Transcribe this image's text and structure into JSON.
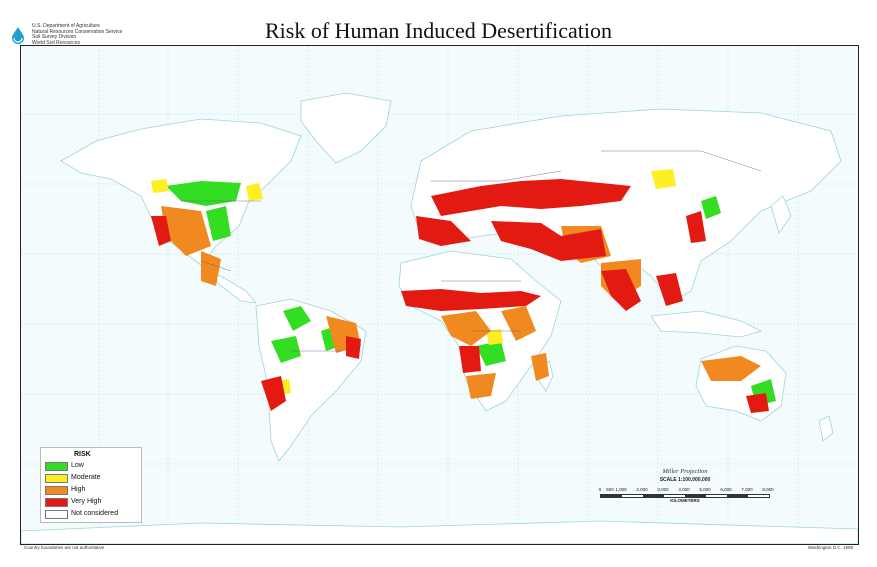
{
  "agency": {
    "lines": [
      "U.S. Department of Agriculture",
      "Natural Resources Conservation Service",
      "Soil Survey Division",
      "World Soil Resources"
    ]
  },
  "title": "Risk of Human Induced Desertification",
  "legend": {
    "title": "RISK",
    "items": [
      {
        "label": "Low",
        "color": "#33dd22"
      },
      {
        "label": "Moderate",
        "color": "#ffee22"
      },
      {
        "label": "High",
        "color": "#f08a20"
      },
      {
        "label": "Very High",
        "color": "#e31a12"
      },
      {
        "label": "Not considered",
        "color": "#ffffff"
      }
    ]
  },
  "scale": {
    "projection": "Miller Projection",
    "scale_text": "SCALE 1:100,000,000",
    "ticks": [
      "0",
      "500",
      "1,000",
      "2,000",
      "3,000",
      "4,000",
      "5,000",
      "6,000",
      "7,000",
      "8,000"
    ],
    "units": "KILOMETERS"
  },
  "footer": {
    "left": "Country boundaries are not authoritative",
    "right": "Washington D.C. 1998"
  },
  "colors": {
    "ocean": "#f4fbfc",
    "land": "#ffffff",
    "border": "#6b4aa0",
    "grid": "#a8e2ec"
  }
}
